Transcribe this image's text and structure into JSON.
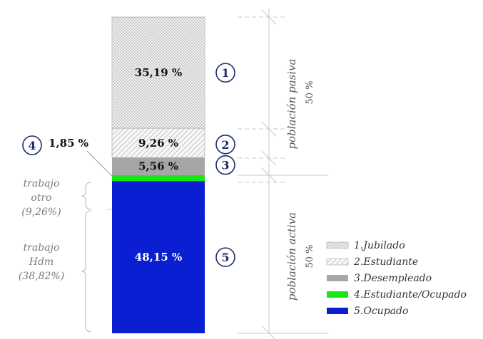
{
  "chart_data": {
    "type": "bar",
    "layout": "stacked-single-column",
    "segments": [
      {
        "id": "1",
        "name": "1.Jubilado",
        "value": 35.19,
        "label": "35,19 %",
        "pattern": "dots",
        "color": "#e8e8e8"
      },
      {
        "id": "2",
        "name": "2.Estudiante",
        "value": 9.26,
        "label": "9,26 %",
        "pattern": "hatch",
        "color": "#f2f2f2"
      },
      {
        "id": "3",
        "name": "3.Desempleado",
        "value": 5.56,
        "label": "5,56 %",
        "pattern": "solid",
        "color": "#a6a6a6"
      },
      {
        "id": "4",
        "name": "4.Estudiante/Ocupado",
        "value": 1.85,
        "label": "1,85 %",
        "pattern": "solid",
        "color": "#19e619"
      },
      {
        "id": "5",
        "name": "5.Ocupado",
        "value": 48.15,
        "label": "48,15 %",
        "pattern": "solid",
        "color": "#0a1ed2"
      }
    ],
    "groups": [
      {
        "label": "población pasiva",
        "value_label": "50 %"
      },
      {
        "label": "población activa",
        "value_label": "50 %"
      }
    ],
    "subdivisions": [
      {
        "line1": "trabajo",
        "line2": "otro",
        "value": 9.26,
        "value_label": "(9,26%)"
      },
      {
        "line1": "trabajo",
        "line2": "Hdm",
        "value": 38.82,
        "value_label": "(38,82%)"
      }
    ],
    "legend_position": "bottom-right",
    "colors": {
      "badge": "#1e2a6e",
      "subdivision_text": "#7a7a7a",
      "guides": "#c8c8c8"
    }
  }
}
